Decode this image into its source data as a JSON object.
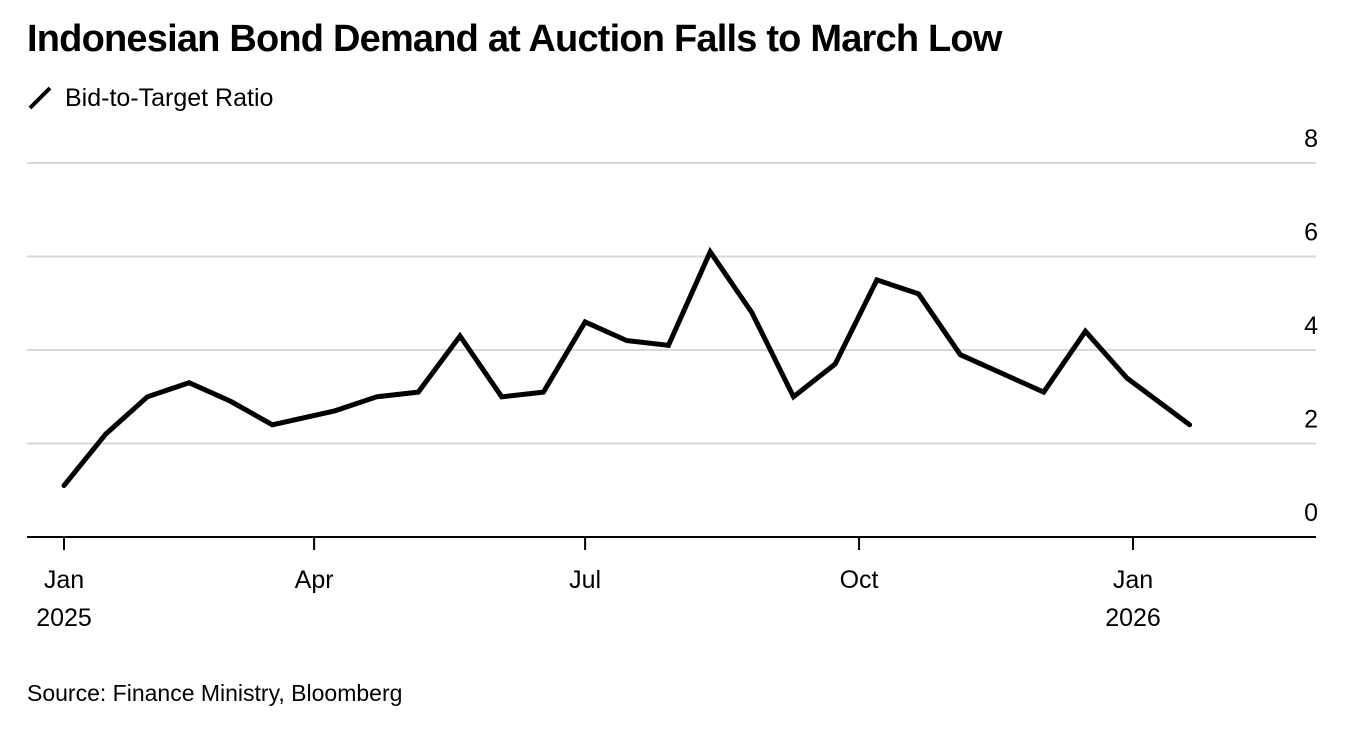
{
  "chart_data": {
    "type": "line",
    "title": "Indonesian Bond Demand at Auction Falls to March Low",
    "legend": [
      "Bid-to-Target Ratio"
    ],
    "legend_position": "top-left",
    "source": "Source: Finance Ministry, Bloomberg",
    "xlabel": "",
    "ylabel": "",
    "grid": true,
    "ylim": [
      0,
      8
    ],
    "yticks": [
      {
        "value": 0,
        "label": "0"
      },
      {
        "value": 2,
        "label": "2"
      },
      {
        "value": 4,
        "label": "4"
      },
      {
        "value": 6,
        "label": "6"
      },
      {
        "value": 8,
        "label": "8"
      }
    ],
    "x_start": "2025-01-07",
    "x_end": "2026-02-15",
    "xticks": [
      {
        "date": "2025-01-07",
        "label": "Jan",
        "sublabel": "2025"
      },
      {
        "date": "2025-04-01",
        "label": "Apr",
        "sublabel": ""
      },
      {
        "date": "2025-07-01",
        "label": "Jul",
        "sublabel": ""
      },
      {
        "date": "2025-10-01",
        "label": "Oct",
        "sublabel": ""
      },
      {
        "date": "2026-01-01",
        "label": "Jan",
        "sublabel": "2026"
      }
    ],
    "series": [
      {
        "name": "Bid-to-Target Ratio",
        "color": "#000000",
        "points": [
          {
            "x": "2025-01-07",
            "y": 1.1
          },
          {
            "x": "2025-01-21",
            "y": 2.2
          },
          {
            "x": "2025-02-04",
            "y": 3.0
          },
          {
            "x": "2025-02-18",
            "y": 3.3
          },
          {
            "x": "2025-03-04",
            "y": 2.9
          },
          {
            "x": "2025-03-18",
            "y": 2.4
          },
          {
            "x": "2025-04-08",
            "y": 2.7
          },
          {
            "x": "2025-04-22",
            "y": 3.0
          },
          {
            "x": "2025-05-06",
            "y": 3.1
          },
          {
            "x": "2025-05-20",
            "y": 4.3
          },
          {
            "x": "2025-06-03",
            "y": 3.0
          },
          {
            "x": "2025-06-17",
            "y": 3.1
          },
          {
            "x": "2025-07-01",
            "y": 4.6
          },
          {
            "x": "2025-07-15",
            "y": 4.2
          },
          {
            "x": "2025-07-29",
            "y": 4.1
          },
          {
            "x": "2025-08-12",
            "y": 6.1
          },
          {
            "x": "2025-08-26",
            "y": 4.8
          },
          {
            "x": "2025-09-09",
            "y": 3.0
          },
          {
            "x": "2025-09-23",
            "y": 3.7
          },
          {
            "x": "2025-10-07",
            "y": 5.5
          },
          {
            "x": "2025-10-21",
            "y": 5.2
          },
          {
            "x": "2025-11-04",
            "y": 3.9
          },
          {
            "x": "2025-11-18",
            "y": 3.5
          },
          {
            "x": "2025-12-02",
            "y": 3.1
          },
          {
            "x": "2025-12-16",
            "y": 4.4
          },
          {
            "x": "2025-12-30",
            "y": 3.4
          },
          {
            "x": "2026-01-20",
            "y": 2.4
          }
        ]
      }
    ]
  }
}
